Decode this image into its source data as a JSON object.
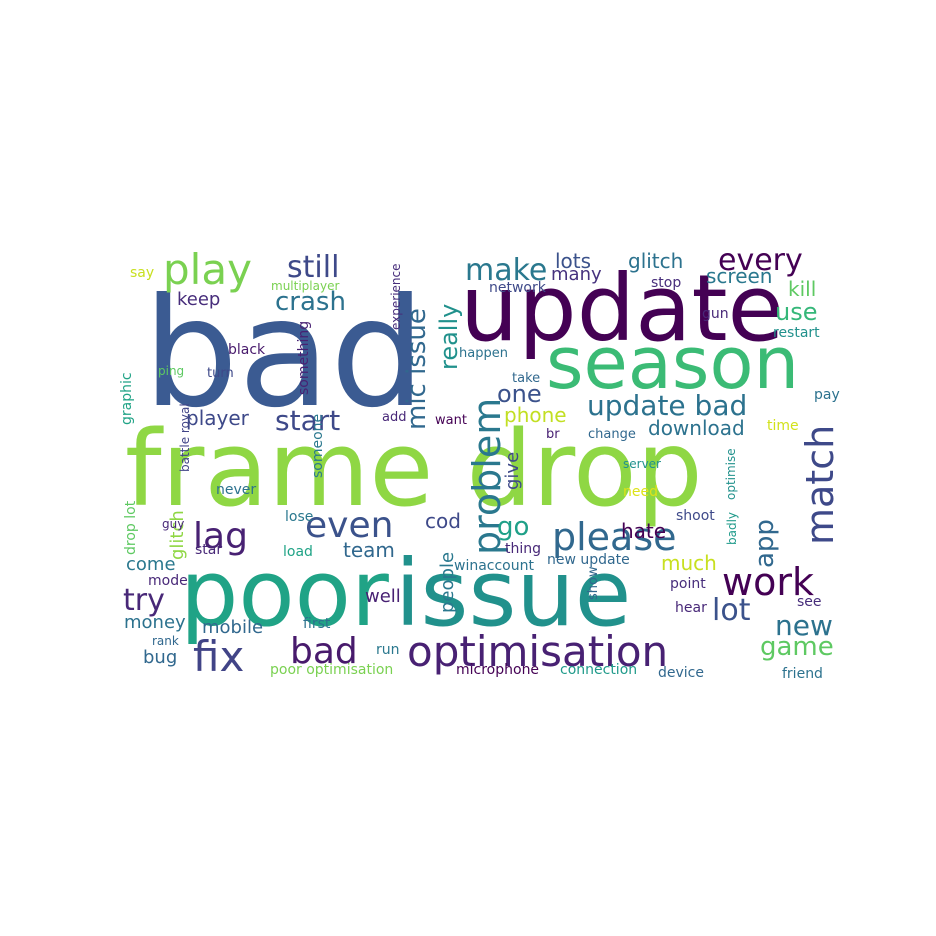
{
  "words": [
    {
      "text": "bad",
      "color": "#3b5b92"
    },
    {
      "text": "frame drop",
      "color": "#8fd744"
    },
    {
      "text": "update",
      "color": "#440154"
    },
    {
      "text": "poor",
      "color": "#20a386"
    },
    {
      "text": "issue",
      "color": "#21918c"
    },
    {
      "text": "season",
      "color": "#3bbb75"
    },
    {
      "text": "optimisation",
      "color": "#482173"
    },
    {
      "text": "problem",
      "color": "#2a788e"
    },
    {
      "text": "play",
      "color": "#7ad151"
    },
    {
      "text": "please",
      "color": "#31688e"
    },
    {
      "text": "match",
      "color": "#3e4989"
    },
    {
      "text": "bad",
      "color": "#481a6c"
    },
    {
      "text": "fix",
      "color": "#414487"
    },
    {
      "text": "work",
      "color": "#440154"
    },
    {
      "text": "update bad",
      "color": "#2c728e"
    },
    {
      "text": "lag",
      "color": "#482173"
    },
    {
      "text": "even",
      "color": "#3b528b"
    },
    {
      "text": "every",
      "color": "#440154"
    },
    {
      "text": "still",
      "color": "#3e4989"
    },
    {
      "text": "make",
      "color": "#2a788e"
    },
    {
      "text": "mic issue",
      "color": "#31688e"
    },
    {
      "text": "start",
      "color": "#3e4989"
    },
    {
      "text": "crash",
      "color": "#2c728e"
    },
    {
      "text": "really",
      "color": "#21918c"
    },
    {
      "text": "lot",
      "color": "#3b528b"
    },
    {
      "text": "new",
      "color": "#2c728e"
    },
    {
      "text": "game",
      "color": "#5ec962"
    },
    {
      "text": "go",
      "color": "#1fa088"
    },
    {
      "text": "try",
      "color": "#482878"
    },
    {
      "text": "app",
      "color": "#31688e"
    },
    {
      "text": "use",
      "color": "#35b779"
    },
    {
      "text": "one",
      "color": "#3b528b"
    },
    {
      "text": "player",
      "color": "#3e4989"
    },
    {
      "text": "lots",
      "color": "#3b528b"
    },
    {
      "text": "glitch",
      "color": "#2c728e"
    },
    {
      "text": "download",
      "color": "#2c728e"
    },
    {
      "text": "screen",
      "color": "#2a788e"
    },
    {
      "text": "phone",
      "color": "#c2df23"
    },
    {
      "text": "team",
      "color": "#31688e"
    },
    {
      "text": "keep",
      "color": "#472d7b"
    },
    {
      "text": "cod",
      "color": "#3e4989"
    },
    {
      "text": "hate",
      "color": "#440154"
    },
    {
      "text": "much",
      "color": "#c8e020"
    },
    {
      "text": "kill",
      "color": "#5ec962"
    },
    {
      "text": "people",
      "color": "#2a788e"
    },
    {
      "text": "glitch",
      "color": "#8fd744"
    },
    {
      "text": "many",
      "color": "#46327e"
    },
    {
      "text": "come",
      "color": "#2a788e"
    },
    {
      "text": "bug",
      "color": "#31688e"
    },
    {
      "text": "money",
      "color": "#2c728e"
    },
    {
      "text": "mobile",
      "color": "#31688e"
    },
    {
      "text": "give",
      "color": "#3e4989"
    },
    {
      "text": "well",
      "color": "#482173"
    },
    {
      "text": "star",
      "color": "#482878"
    },
    {
      "text": "stop",
      "color": "#472d7b"
    },
    {
      "text": "restart",
      "color": "#21918c"
    },
    {
      "text": "drop lot",
      "color": "#5ec962"
    },
    {
      "text": "gun",
      "color": "#482878"
    },
    {
      "text": "pay",
      "color": "#2c728e"
    },
    {
      "text": "see",
      "color": "#472d7b"
    },
    {
      "text": "mode",
      "color": "#482878"
    },
    {
      "text": "load",
      "color": "#20a386"
    },
    {
      "text": "network",
      "color": "#3e4989"
    },
    {
      "text": "shoot",
      "color": "#3e4989"
    },
    {
      "text": "new update",
      "color": "#31688e"
    },
    {
      "text": "point",
      "color": "#472d7b"
    },
    {
      "text": "hear",
      "color": "#482878"
    },
    {
      "text": "thing",
      "color": "#482878"
    },
    {
      "text": "time",
      "color": "#d2e21b"
    },
    {
      "text": "need",
      "color": "#dde318"
    },
    {
      "text": "device",
      "color": "#31688e"
    },
    {
      "text": "friend",
      "color": "#2c728e"
    },
    {
      "text": "microphone",
      "color": "#440154"
    },
    {
      "text": "connection",
      "color": "#1f9a8a"
    },
    {
      "text": "poor optimisation",
      "color": "#7ad151"
    },
    {
      "text": "winaccount",
      "color": "#2c728e"
    },
    {
      "text": "happen",
      "color": "#2c728e"
    },
    {
      "text": "take",
      "color": "#31688e"
    },
    {
      "text": "want",
      "color": "#440154"
    },
    {
      "text": "br",
      "color": "#482173"
    },
    {
      "text": "change",
      "color": "#31688e"
    },
    {
      "text": "server",
      "color": "#21918c"
    },
    {
      "text": "add",
      "color": "#482878"
    },
    {
      "text": "black",
      "color": "#481a6c"
    },
    {
      "text": "ping",
      "color": "#5ec962"
    },
    {
      "text": "turn",
      "color": "#3e4989"
    },
    {
      "text": "say",
      "color": "#c8e020"
    },
    {
      "text": "multiplayer",
      "color": "#7ad151"
    },
    {
      "text": "experience",
      "color": "#472d7b"
    },
    {
      "text": "something",
      "color": "#482173"
    },
    {
      "text": "graphic",
      "color": "#20a386"
    },
    {
      "text": "battle royal",
      "color": "#414487"
    },
    {
      "text": "someone",
      "color": "#2a788e"
    },
    {
      "text": "never",
      "color": "#2c728e"
    },
    {
      "text": "lose",
      "color": "#2a788e"
    },
    {
      "text": "first",
      "color": "#2c728e"
    },
    {
      "text": "guy",
      "color": "#482878"
    },
    {
      "text": "rank",
      "color": "#31688e"
    },
    {
      "text": "run",
      "color": "#2a788e"
    },
    {
      "text": "show",
      "color": "#31688e"
    },
    {
      "text": "optimise",
      "color": "#21918c"
    },
    {
      "text": "badly",
      "color": "#1f9a8a"
    }
  ]
}
